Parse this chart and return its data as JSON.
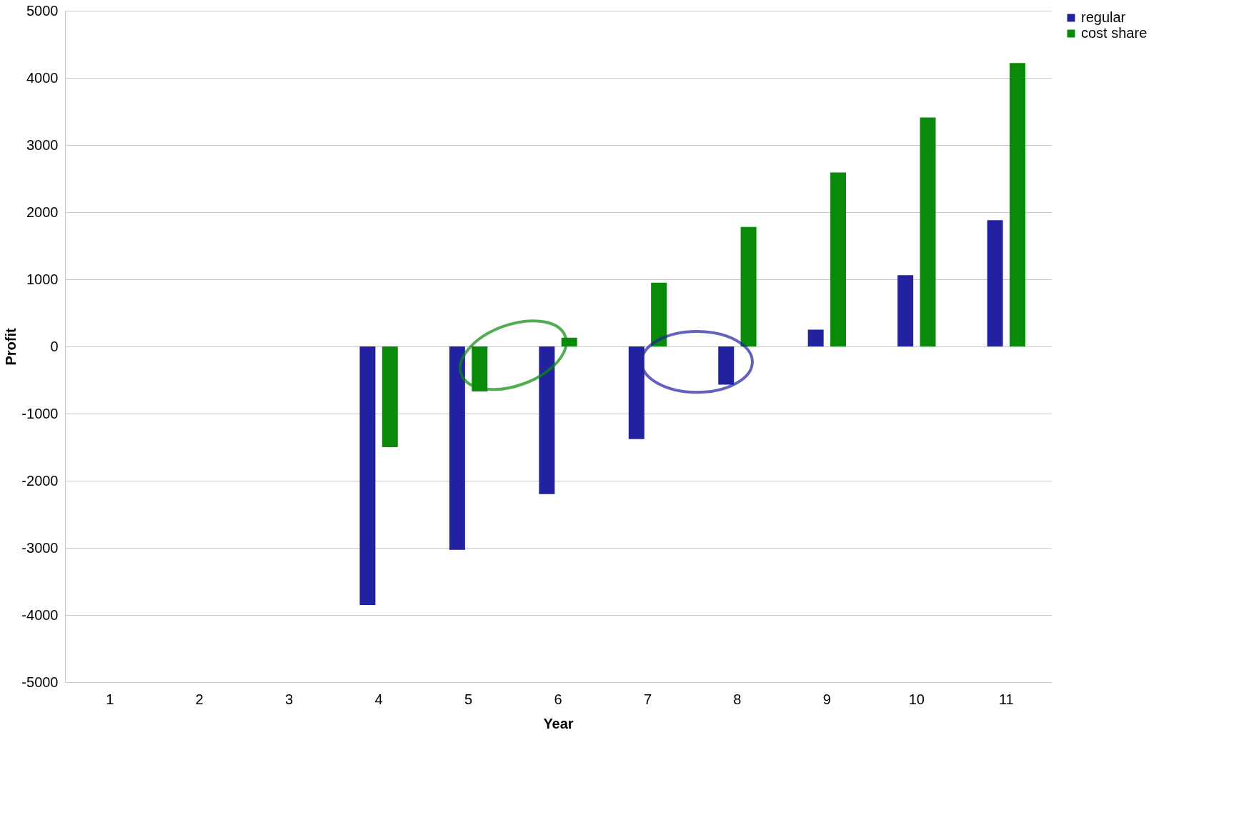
{
  "chart_data": {
    "type": "bar",
    "xlabel": "Year",
    "ylabel": "Profit",
    "categories": [
      "1",
      "2",
      "3",
      "4",
      "5",
      "6",
      "7",
      "8",
      "9",
      "10",
      "11"
    ],
    "series": [
      {
        "name": "regular",
        "color": "#2222a0",
        "values": [
          0,
          0,
          0,
          -3850,
          -3030,
          -2200,
          -1380,
          -570,
          250,
          1060,
          1880
        ]
      },
      {
        "name": "cost share",
        "color": "#0a8a0a",
        "values": [
          0,
          0,
          0,
          -1500,
          -670,
          130,
          950,
          1780,
          2590,
          3410,
          4220
        ]
      }
    ],
    "ylim": [
      -5000,
      5000
    ],
    "yticks": [
      -5000,
      -4000,
      -3000,
      -2000,
      -1000,
      0,
      1000,
      2000,
      3000,
      4000,
      5000
    ],
    "grid": "y",
    "legend": "right"
  }
}
